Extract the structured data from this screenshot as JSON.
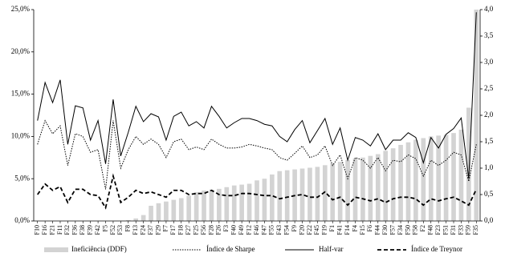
{
  "chart_data": {
    "type": "bar-line",
    "categories": [
      "F10",
      "F16",
      "F21",
      "F11",
      "F32",
      "F36",
      "F38",
      "F39",
      "F42",
      "F5",
      "F52",
      "F53",
      "F8",
      "F13",
      "F24",
      "F37",
      "F29",
      "F7",
      "F17",
      "F18",
      "F27",
      "F25",
      "F56",
      "F28",
      "F26",
      "F3",
      "F40",
      "F49",
      "F12",
      "F46",
      "F47",
      "F55",
      "F43",
      "F54",
      "F9",
      "F20",
      "F22",
      "F45",
      "F19",
      "F1",
      "F41",
      "F14",
      "F4",
      "F15",
      "F6",
      "F44",
      "F30",
      "F57",
      "F34",
      "F50",
      "F58",
      "F2",
      "F48",
      "F23",
      "F51",
      "F31",
      "F33",
      "F59",
      "F35"
    ],
    "series": [
      {
        "name": "Ineficiência (DDF)",
        "kind": "bar",
        "axis": "y",
        "color": "#d3d3d3",
        "values": [
          0,
          0,
          0,
          0,
          0,
          0,
          0,
          0,
          0,
          0,
          0,
          0,
          0.1,
          0.3,
          0.7,
          1.8,
          2.1,
          2.3,
          2.5,
          2.7,
          3.0,
          3.4,
          3.6,
          3.7,
          3.8,
          4.0,
          4.2,
          4.3,
          4.4,
          4.8,
          5.0,
          5.5,
          5.9,
          6.0,
          6.1,
          6.2,
          6.3,
          6.4,
          6.6,
          6.8,
          7.0,
          7.2,
          7.4,
          7.5,
          7.7,
          7.9,
          8.3,
          8.6,
          9.0,
          9.3,
          9.6,
          9.8,
          10.0,
          10.1,
          10.2,
          10.4,
          10.8,
          13.4,
          25.0
        ]
      },
      {
        "name": "Índice de Sharpe",
        "kind": "line",
        "axis": "y2",
        "color": "#000000",
        "dash": "dotted",
        "values": [
          1.45,
          1.9,
          1.65,
          1.8,
          1.05,
          1.65,
          1.6,
          1.3,
          1.35,
          0.6,
          1.9,
          1.0,
          1.35,
          1.6,
          1.45,
          1.55,
          1.45,
          1.2,
          1.5,
          1.55,
          1.35,
          1.4,
          1.35,
          1.55,
          1.45,
          1.38,
          1.38,
          1.4,
          1.45,
          1.42,
          1.38,
          1.35,
          1.2,
          1.15,
          1.28,
          1.42,
          1.2,
          1.25,
          1.42,
          1.05,
          1.25,
          0.8,
          1.2,
          1.15,
          1.0,
          1.2,
          0.95,
          1.15,
          1.12,
          1.25,
          1.18,
          0.85,
          1.15,
          1.05,
          1.15,
          1.3,
          1.25,
          0.75,
          1.45
        ]
      },
      {
        "name": "Half-var",
        "kind": "line",
        "axis": "y2",
        "color": "#000000",
        "dash": "solid",
        "values": [
          1.9,
          2.62,
          2.24,
          2.67,
          1.45,
          2.18,
          2.14,
          1.53,
          1.9,
          1.08,
          2.3,
          1.23,
          1.68,
          2.17,
          1.88,
          2.03,
          1.97,
          1.53,
          1.98,
          2.06,
          1.8,
          1.88,
          1.76,
          2.17,
          1.98,
          1.76,
          1.86,
          1.94,
          1.94,
          1.9,
          1.83,
          1.8,
          1.6,
          1.5,
          1.73,
          1.9,
          1.48,
          1.71,
          1.94,
          1.45,
          1.76,
          1.15,
          1.58,
          1.53,
          1.42,
          1.65,
          1.35,
          1.53,
          1.53,
          1.67,
          1.58,
          1.1,
          1.58,
          1.38,
          1.64,
          1.75,
          1.95,
          0.8,
          3.95
        ]
      },
      {
        "name": "Índice de Treynor",
        "kind": "line",
        "axis": "y2",
        "color": "#000000",
        "dash": "dashed",
        "values": [
          0.5,
          0.7,
          0.58,
          0.65,
          0.35,
          0.6,
          0.6,
          0.5,
          0.48,
          0.25,
          0.85,
          0.35,
          0.45,
          0.58,
          0.52,
          0.55,
          0.5,
          0.45,
          0.58,
          0.58,
          0.5,
          0.52,
          0.52,
          0.58,
          0.5,
          0.48,
          0.48,
          0.52,
          0.52,
          0.5,
          0.48,
          0.48,
          0.42,
          0.45,
          0.48,
          0.5,
          0.45,
          0.45,
          0.55,
          0.4,
          0.45,
          0.3,
          0.45,
          0.42,
          0.38,
          0.42,
          0.35,
          0.42,
          0.45,
          0.45,
          0.42,
          0.3,
          0.42,
          0.38,
          0.42,
          0.45,
          0.38,
          0.3,
          0.6
        ]
      }
    ],
    "ylim": [
      0,
      25
    ],
    "yticks": [
      {
        "value": 0,
        "label": "0,0%"
      },
      {
        "value": 5,
        "label": "5,0%"
      },
      {
        "value": 10,
        "label": "10,0%"
      },
      {
        "value": 15,
        "label": "15,0%"
      },
      {
        "value": 20,
        "label": "20,0%"
      },
      {
        "value": 25,
        "label": "25,0%"
      }
    ],
    "y2lim": [
      0,
      4
    ],
    "y2ticks": [
      {
        "value": 0,
        "label": "0,0"
      },
      {
        "value": 0.5,
        "label": "0,5"
      },
      {
        "value": 1,
        "label": "1,0"
      },
      {
        "value": 1.5,
        "label": "1,5"
      },
      {
        "value": 2,
        "label": "2,0"
      },
      {
        "value": 2.5,
        "label": "2,5"
      },
      {
        "value": 3,
        "label": "3,0"
      },
      {
        "value": 3.5,
        "label": "3,5"
      },
      {
        "value": 4,
        "label": "4,0"
      }
    ],
    "legend": "bottom"
  }
}
